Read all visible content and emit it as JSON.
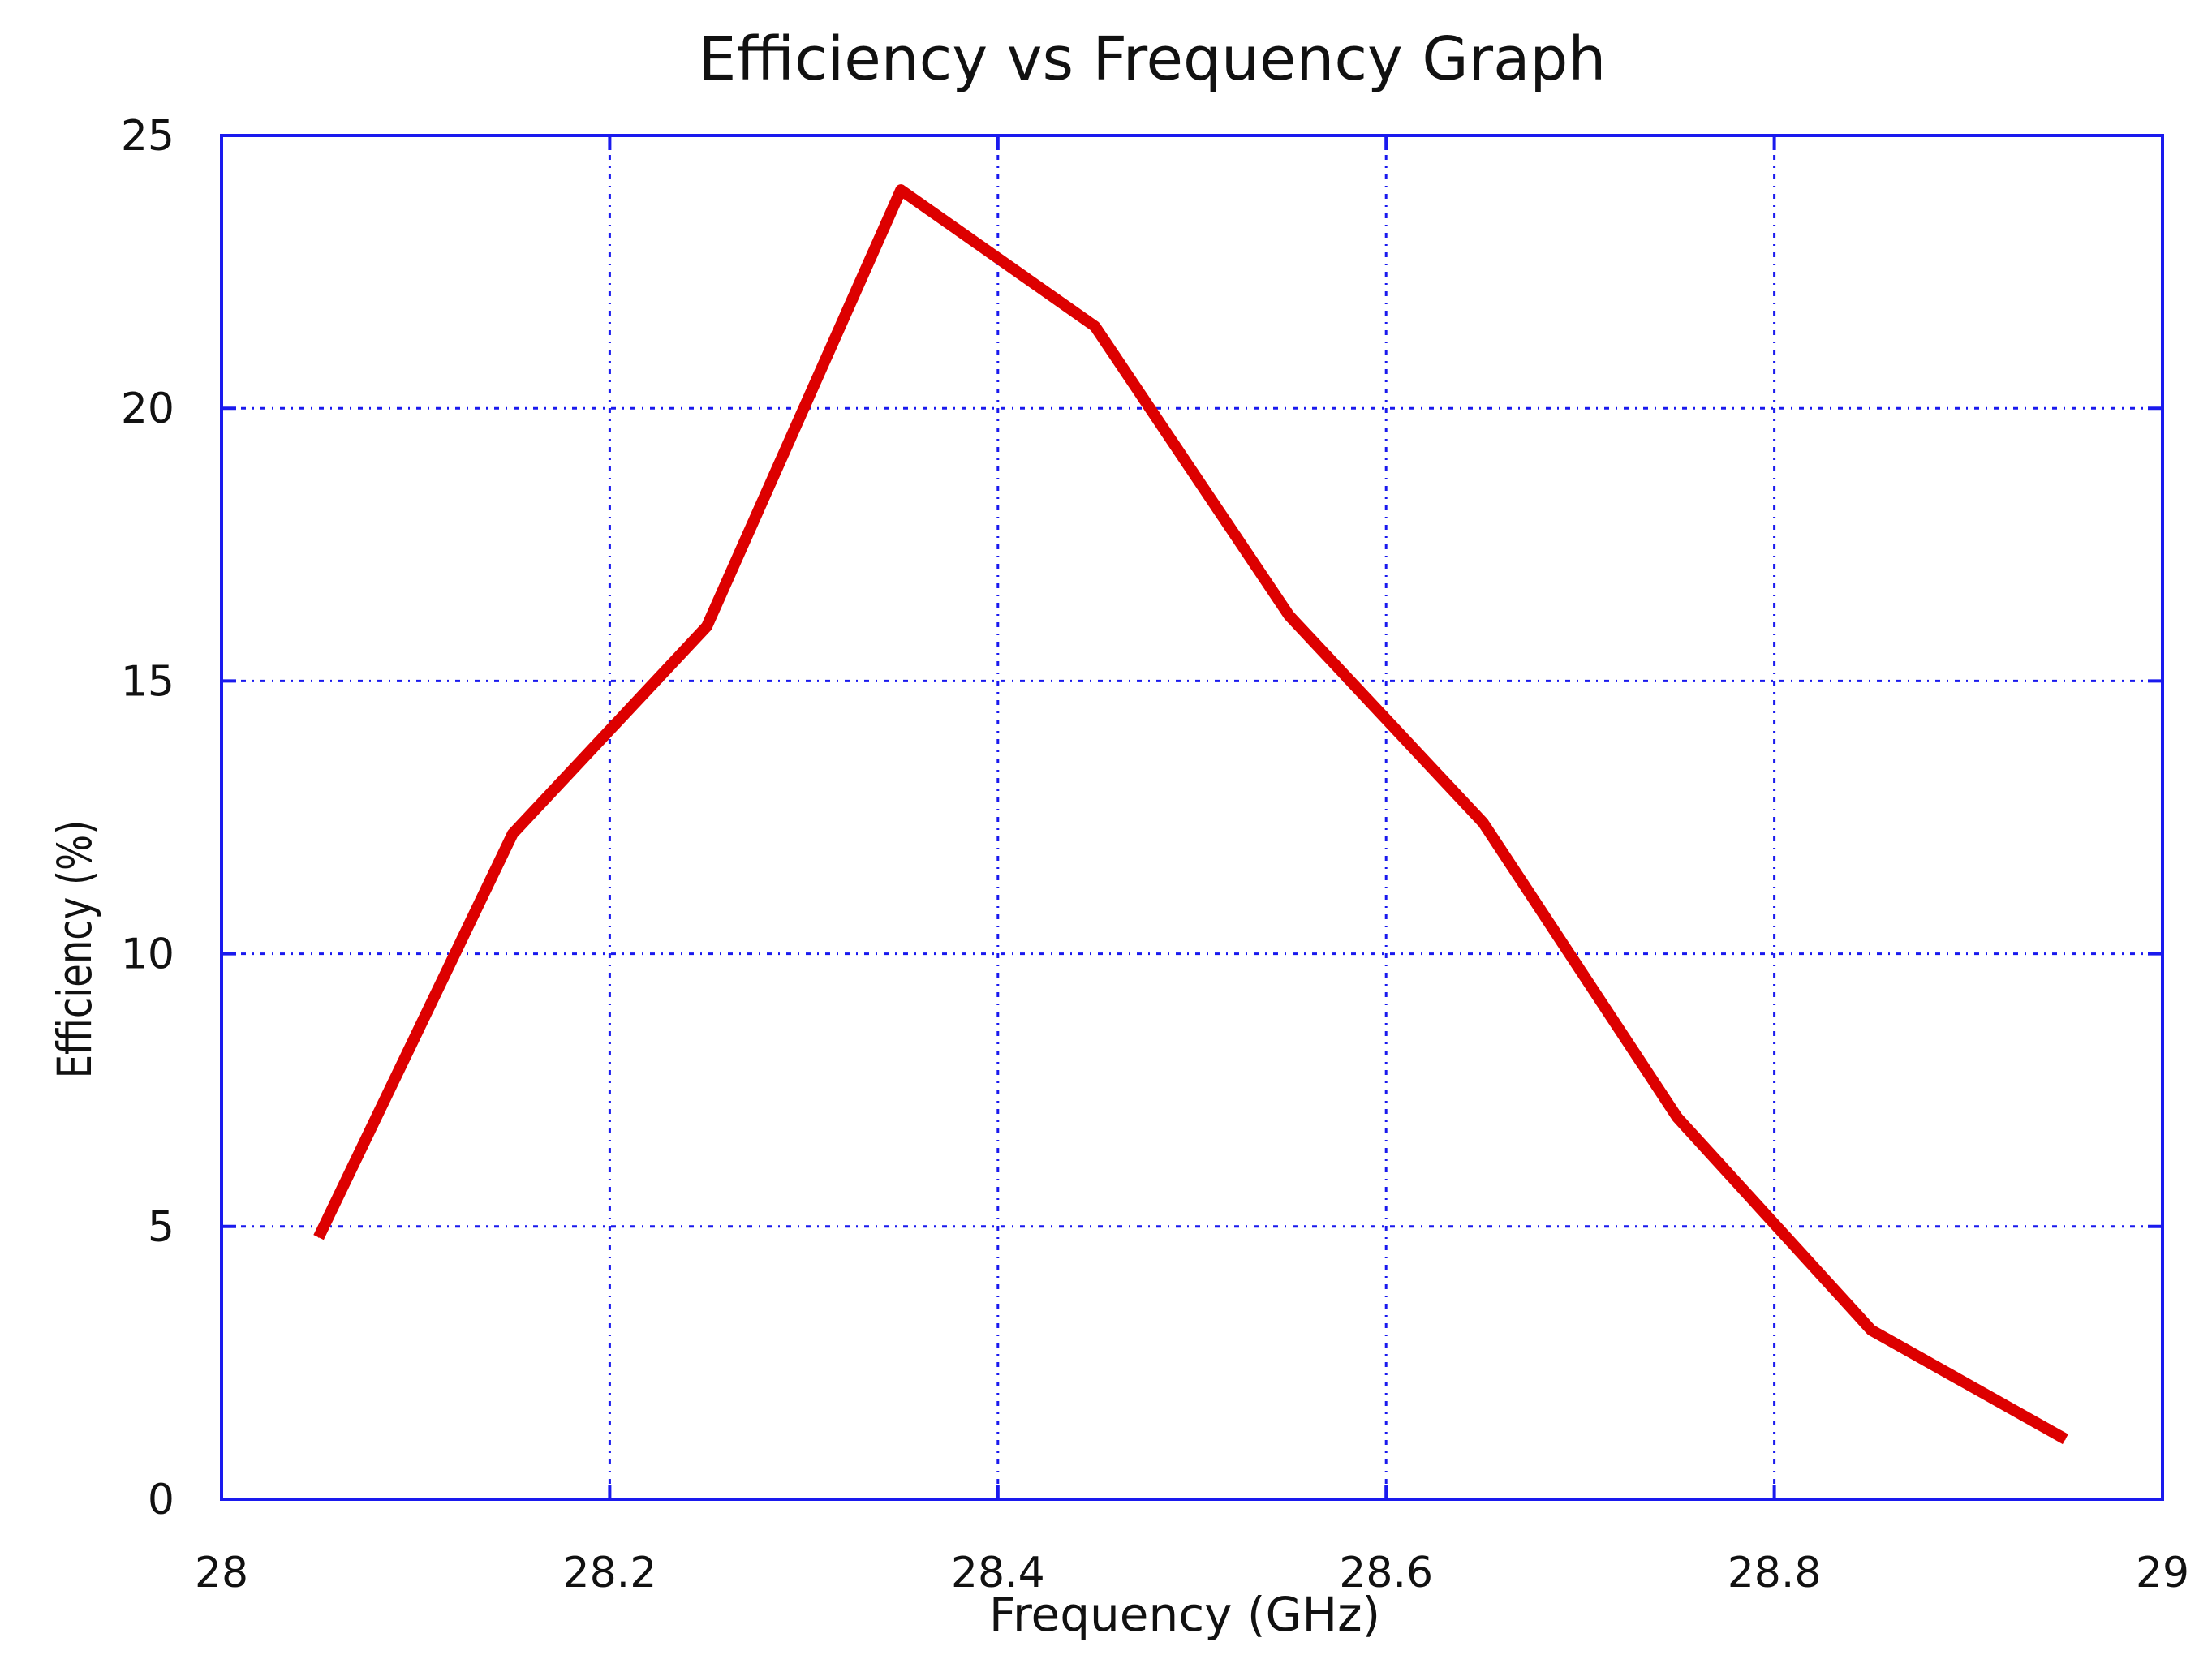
{
  "chart_data": {
    "type": "line",
    "title": "Efficiency vs Frequency Graph",
    "xlabel": "Frequency (GHz)",
    "ylabel": "Efficiency (%)",
    "xlim": [
      28,
      29
    ],
    "ylim": [
      0,
      25
    ],
    "xticks": [
      28,
      28.2,
      28.4,
      28.6,
      28.8,
      29
    ],
    "xtick_labels": [
      "28",
      "28.2",
      "28.4",
      "28.6",
      "28.8",
      "29"
    ],
    "yticks": [
      0,
      5,
      10,
      15,
      20,
      25
    ],
    "ytick_labels": [
      "0",
      "5",
      "10",
      "15",
      "20",
      "25"
    ],
    "grid": true,
    "series": [
      {
        "name": "Efficiency",
        "color": "#dd0000",
        "x": [
          28.05,
          28.15,
          28.25,
          28.35,
          28.45,
          28.55,
          28.65,
          28.75,
          28.85,
          28.95
        ],
        "y": [
          4.8,
          12.2,
          16.0,
          24.0,
          21.5,
          16.2,
          12.4,
          7.0,
          3.1,
          1.1
        ]
      }
    ],
    "colors": {
      "grid": "#1a1aee",
      "frame": "#1a1aee",
      "text": "#111111"
    }
  }
}
